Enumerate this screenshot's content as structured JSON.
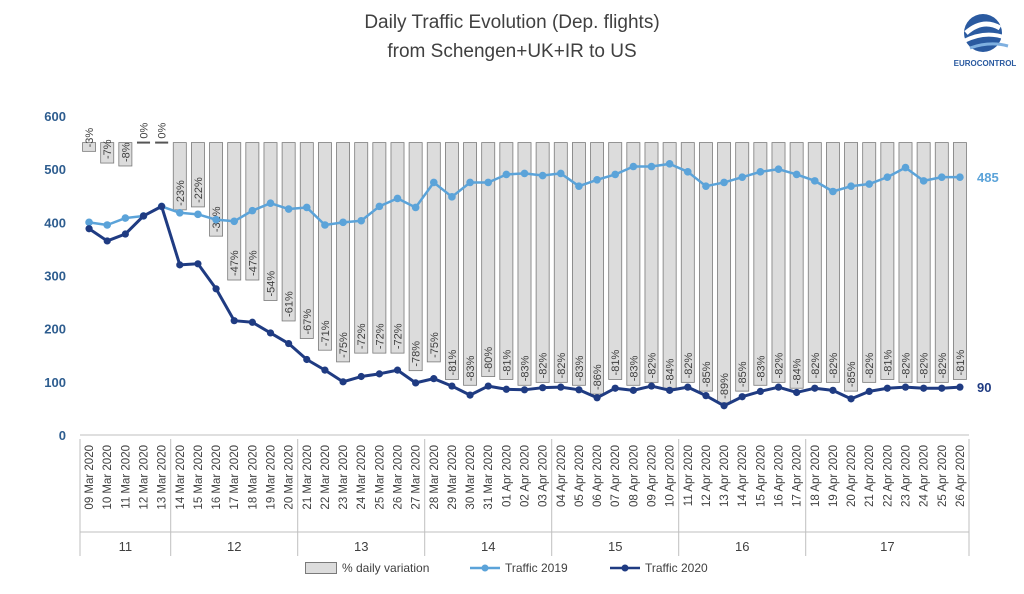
{
  "chart_data": {
    "type": "bar+line",
    "title": "Daily Traffic Evolution (Dep. flights)",
    "subtitle": "from Schengen+UK+IR  to US",
    "ylim": [
      0,
      600
    ],
    "yticks": [
      "0",
      "100",
      "200",
      "300",
      "400",
      "500",
      "600"
    ],
    "categories": [
      "09 Mar 2020",
      "10 Mar 2020",
      "11 Mar 2020",
      "12 Mar 2020",
      "13 Mar 2020",
      "14 Mar 2020",
      "15 Mar 2020",
      "16 Mar 2020",
      "17 Mar 2020",
      "18 Mar 2020",
      "19 Mar 2020",
      "20 Mar 2020",
      "21 Mar 2020",
      "22 Mar 2020",
      "23 Mar 2020",
      "24 Mar 2020",
      "25 Mar 2020",
      "26 Mar 2020",
      "27 Mar 2020",
      "28 Mar 2020",
      "29 Mar 2020",
      "30 Mar 2020",
      "31 Mar 2020",
      "01 Apr 2020",
      "02 Apr 2020",
      "03 Apr 2020",
      "04 Apr 2020",
      "05 Apr 2020",
      "06 Apr 2020",
      "07 Apr 2020",
      "08 Apr 2020",
      "09 Apr 2020",
      "10 Apr 2020",
      "11 Apr 2020",
      "12 Apr 2020",
      "13 Apr 2020",
      "14 Apr 2020",
      "15 Apr 2020",
      "16 Apr 2020",
      "17 Apr 2020",
      "18 Apr 2020",
      "19 Apr 2020",
      "20 Apr 2020",
      "21 Apr 2020",
      "22 Apr 2020",
      "23 Apr 2020",
      "24 Apr 2020",
      "25 Apr 2020",
      "26 Apr 2020"
    ],
    "weeks": [
      {
        "label": "11",
        "start": 0,
        "count": 5
      },
      {
        "label": "12",
        "start": 5,
        "count": 7
      },
      {
        "label": "13",
        "start": 12,
        "count": 7
      },
      {
        "label": "14",
        "start": 19,
        "count": 7
      },
      {
        "label": "15",
        "start": 26,
        "count": 7
      },
      {
        "label": "16",
        "start": 33,
        "count": 7
      },
      {
        "label": "17",
        "start": 40,
        "count": 9
      }
    ],
    "variation": [
      "-3%",
      "-7%",
      "-8%",
      "0%",
      "0%",
      "-23%",
      "-22%",
      "-32%",
      "-47%",
      "-47%",
      "-54%",
      "-61%",
      "-67%",
      "-71%",
      "-75%",
      "-72%",
      "-72%",
      "-72%",
      "-78%",
      "-75%",
      "-81%",
      "-83%",
      "-80%",
      "-81%",
      "-83%",
      "-82%",
      "-82%",
      "-83%",
      "-86%",
      "-81%",
      "-83%",
      "-82%",
      "-84%",
      "-82%",
      "-85%",
      "-89%",
      "-85%",
      "-83%",
      "-82%",
      "-84%",
      "-82%",
      "-82%",
      "-85%",
      "-82%",
      "-81%",
      "-82%",
      "-82%",
      "-82%",
      "-81%"
    ],
    "variation_values": [
      -3,
      -7,
      -8,
      0,
      0,
      -23,
      -22,
      -32,
      -47,
      -47,
      -54,
      -61,
      -67,
      -71,
      -75,
      -72,
      -72,
      -72,
      -78,
      -75,
      -81,
      -83,
      -80,
      -81,
      -83,
      -82,
      -82,
      -83,
      -86,
      -81,
      -83,
      -82,
      -84,
      -82,
      -85,
      -89,
      -85,
      -83,
      -82,
      -84,
      -82,
      -82,
      -85,
      -82,
      -81,
      -82,
      -82,
      -82,
      -81
    ],
    "series": [
      {
        "name": "Traffic 2019",
        "color": "#5ba3d9",
        "values": [
          400,
          395,
          408,
          412,
          430,
          418,
          415,
          405,
          402,
          422,
          436,
          425,
          428,
          395,
          400,
          403,
          430,
          445,
          428,
          475,
          448,
          475,
          475,
          490,
          492,
          488,
          492,
          468,
          480,
          490,
          505,
          505,
          510,
          495,
          468,
          475,
          485,
          495,
          500,
          490,
          478,
          458,
          468,
          472,
          485,
          503,
          478,
          485,
          485
        ]
      },
      {
        "name": "Traffic 2020",
        "color": "#1f3b82",
        "values": [
          388,
          365,
          378,
          412,
          430,
          320,
          322,
          275,
          215,
          212,
          192,
          172,
          142,
          122,
          100,
          110,
          115,
          122,
          98,
          106,
          92,
          75,
          92,
          86,
          85,
          89,
          90,
          85,
          70,
          88,
          84,
          92,
          84,
          90,
          74,
          55,
          72,
          82,
          90,
          80,
          88,
          84,
          68,
          82,
          88,
          90,
          88,
          88,
          90
        ]
      }
    ],
    "end_labels": {
      "traffic_2019": "485",
      "traffic_2020": "90"
    },
    "legend": [
      "% daily variation",
      "Traffic 2019",
      "Traffic 2020"
    ],
    "colors": {
      "bar_fill": "#dcdcdc",
      "bar_stroke": "#7a7a7a",
      "axis_text": "#2e5d8f",
      "grid": "#d9d9d9"
    }
  },
  "logo": {
    "text": "EUROCONTROL"
  }
}
